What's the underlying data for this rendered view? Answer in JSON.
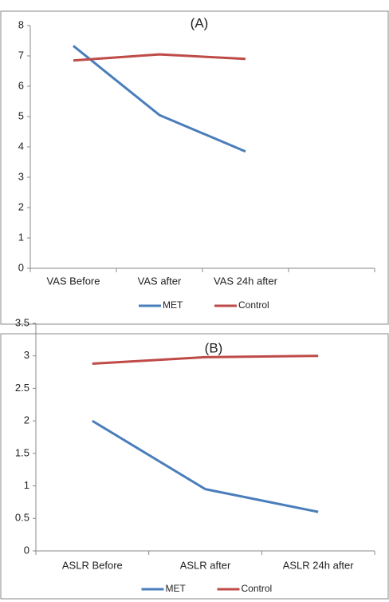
{
  "chart_data": [
    {
      "type": "line",
      "title": "(A)",
      "categories": [
        "VAS  Before",
        "VAS  after",
        "VAS 24h after",
        null
      ],
      "series": [
        {
          "name": "MET",
          "color": "#4a7ebb",
          "values": [
            7.33,
            5.05,
            3.85,
            null
          ]
        },
        {
          "name": "Control",
          "color": "#be4b48",
          "values": [
            6.85,
            7.05,
            6.9,
            null
          ]
        }
      ],
      "ylim": [
        0,
        8
      ],
      "yticks": [
        0,
        1,
        2,
        3,
        4,
        5,
        6,
        7,
        8
      ],
      "grid": false,
      "legend": "bottom"
    },
    {
      "type": "line",
      "title": "(B)",
      "categories": [
        "ASLR Before",
        "ASLR after",
        "ASLR 24h after"
      ],
      "series": [
        {
          "name": "MET",
          "color": "#4a7ebb",
          "values": [
            2.0,
            0.95,
            0.6
          ]
        },
        {
          "name": "Control",
          "color": "#be4b48",
          "values": [
            2.88,
            2.98,
            3.0
          ]
        }
      ],
      "ylim": [
        0,
        3.5
      ],
      "yticks": [
        0,
        0.5,
        1,
        1.5,
        2,
        2.5,
        3,
        3.5
      ],
      "grid": false,
      "legend": "bottom"
    }
  ]
}
